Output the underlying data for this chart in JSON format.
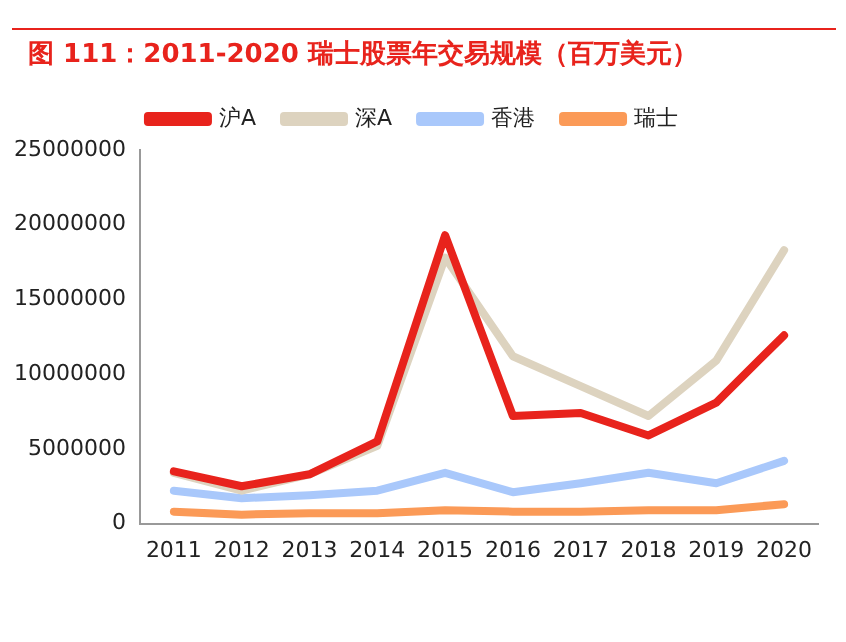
{
  "chart_data": {
    "type": "line",
    "title": "图 111：2011-2020 瑞士股票年交易规模（百万美元）",
    "categories": [
      "2011",
      "2012",
      "2013",
      "2014",
      "2015",
      "2016",
      "2017",
      "2018",
      "2019",
      "2020"
    ],
    "series": [
      {
        "name": "沪A",
        "color": "#e8231c",
        "values": [
          3500000,
          2500000,
          3300000,
          5500000,
          19300000,
          7200000,
          7400000,
          5900000,
          8100000,
          12600000
        ]
      },
      {
        "name": "深A",
        "color": "#ddd3bf",
        "values": [
          3400000,
          2200000,
          3300000,
          5200000,
          17800000,
          11200000,
          9200000,
          7200000,
          10900000,
          18300000
        ]
      },
      {
        "name": "香港",
        "color": "#a9c8fb",
        "values": [
          2200000,
          1700000,
          1900000,
          2200000,
          3400000,
          2100000,
          2700000,
          3400000,
          2700000,
          4200000
        ]
      },
      {
        "name": "瑞士",
        "color": "#fb9a57",
        "values": [
          800000,
          600000,
          700000,
          700000,
          900000,
          800000,
          800000,
          900000,
          900000,
          1300000
        ]
      }
    ],
    "ylim": [
      0,
      25000000
    ],
    "yticks": [
      0,
      5000000,
      10000000,
      15000000,
      20000000,
      25000000
    ],
    "grid": false,
    "legend": "top",
    "marker": "none",
    "line_style": "solid"
  }
}
